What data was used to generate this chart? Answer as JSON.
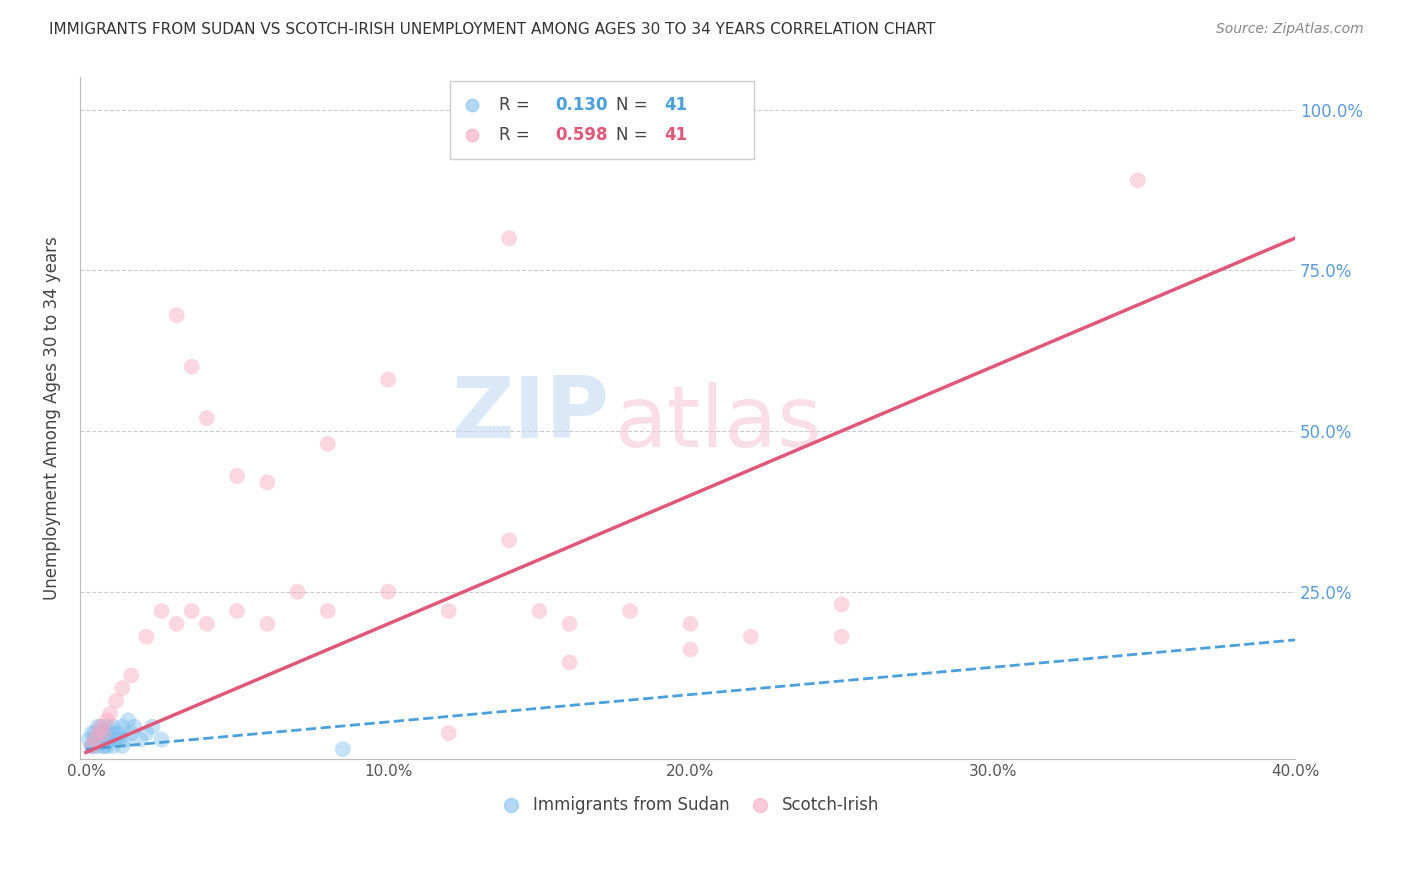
{
  "title": "IMMIGRANTS FROM SUDAN VS SCOTCH-IRISH UNEMPLOYMENT AMONG AGES 30 TO 34 YEARS CORRELATION CHART",
  "source": "Source: ZipAtlas.com",
  "ylabel": "Unemployment Among Ages 30 to 34 years",
  "xlim": [
    0.0,
    0.4
  ],
  "ylim": [
    -0.01,
    1.05
  ],
  "xticks": [
    0.0,
    0.05,
    0.1,
    0.15,
    0.2,
    0.25,
    0.3,
    0.35,
    0.4
  ],
  "xticklabels": [
    "0.0%",
    "",
    "10.0%",
    "",
    "20.0%",
    "",
    "30.0%",
    "",
    "40.0%"
  ],
  "yticks": [
    0.0,
    0.25,
    0.5,
    0.75,
    1.0
  ],
  "yticklabels": [
    "",
    "25.0%",
    "50.0%",
    "75.0%",
    "100.0%"
  ],
  "r1": "0.130",
  "n1": "41",
  "r2": "0.598",
  "n2": "41",
  "color_blue": "#7fbfee",
  "color_pink": "#f7a8c0",
  "color_line_blue": "#4b9fdb",
  "color_line_pink": "#e05878",
  "color_grid": "#cccccc",
  "color_ytick": "#5b9bd5",
  "watermark_zip": "#c8ddf5",
  "watermark_atlas": "#f7c8d8",
  "sudan_x": [
    0.001,
    0.002,
    0.003,
    0.004,
    0.005,
    0.006,
    0.007,
    0.008,
    0.009,
    0.01,
    0.011,
    0.012,
    0.013,
    0.014,
    0.015,
    0.016,
    0.018,
    0.02,
    0.022,
    0.025,
    0.003,
    0.004,
    0.005,
    0.006,
    0.007,
    0.008,
    0.009,
    0.01,
    0.011,
    0.012,
    0.002,
    0.003,
    0.004,
    0.005,
    0.006,
    0.007,
    0.008,
    0.085,
    0.002,
    0.003,
    0.004
  ],
  "sudan_y": [
    0.02,
    0.01,
    0.03,
    0.02,
    0.04,
    0.01,
    0.03,
    0.02,
    0.04,
    0.02,
    0.03,
    0.04,
    0.02,
    0.05,
    0.03,
    0.04,
    0.02,
    0.03,
    0.04,
    0.02,
    0.01,
    0.02,
    0.03,
    0.01,
    0.04,
    0.02,
    0.01,
    0.03,
    0.02,
    0.01,
    0.03,
    0.02,
    0.04,
    0.03,
    0.02,
    0.01,
    0.03,
    0.005,
    0.01,
    0.02,
    0.01
  ],
  "scotch_x": [
    0.002,
    0.003,
    0.004,
    0.005,
    0.006,
    0.007,
    0.008,
    0.01,
    0.012,
    0.015,
    0.02,
    0.025,
    0.03,
    0.035,
    0.04,
    0.05,
    0.06,
    0.07,
    0.08,
    0.1,
    0.12,
    0.14,
    0.15,
    0.16,
    0.18,
    0.2,
    0.22,
    0.25,
    0.14,
    0.1,
    0.08,
    0.06,
    0.05,
    0.04,
    0.035,
    0.03,
    0.12,
    0.16,
    0.2,
    0.25,
    0.348
  ],
  "scotch_y": [
    0.01,
    0.02,
    0.03,
    0.04,
    0.03,
    0.05,
    0.06,
    0.08,
    0.1,
    0.12,
    0.18,
    0.22,
    0.2,
    0.22,
    0.2,
    0.22,
    0.2,
    0.25,
    0.22,
    0.25,
    0.22,
    0.33,
    0.22,
    0.2,
    0.22,
    0.2,
    0.18,
    0.23,
    0.8,
    0.58,
    0.48,
    0.42,
    0.43,
    0.52,
    0.6,
    0.68,
    0.03,
    0.14,
    0.16,
    0.18,
    0.89
  ],
  "sudan_trend": [
    0.005,
    0.175
  ],
  "scotch_trend": [
    0.0,
    0.8
  ]
}
